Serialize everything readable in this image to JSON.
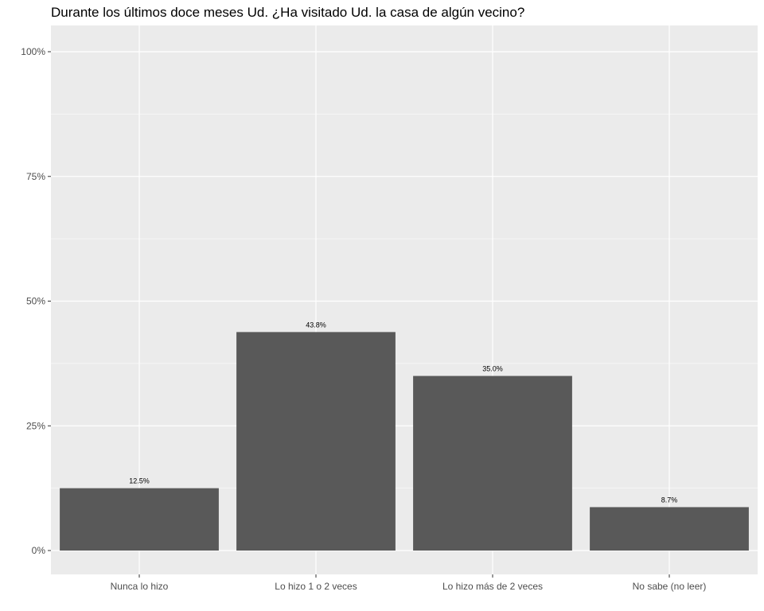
{
  "chart_data": {
    "type": "bar",
    "title": "Durante los últimos doce meses Ud. ¿Ha visitado Ud. la casa de algún vecino?",
    "xlabel": "",
    "ylabel": "",
    "categories": [
      "Nunca lo hizo",
      "Lo hizo 1 o 2 veces",
      "Lo hizo más de 2 veces",
      "No sabe (no leer)"
    ],
    "values": [
      12.5,
      43.8,
      35.0,
      8.7
    ],
    "data_labels": [
      "12.5%",
      "43.8%",
      "35.0%",
      "8.7%"
    ],
    "ylim": [
      0,
      105
    ],
    "yticks": [
      0,
      25,
      50,
      75,
      100
    ],
    "ytick_labels": [
      "0%",
      "25%",
      "50%",
      "75%",
      "100%"
    ],
    "grid": true,
    "colors": {
      "panel": "#ebebeb",
      "grid": "#ffffff",
      "bar": "#595959"
    }
  }
}
